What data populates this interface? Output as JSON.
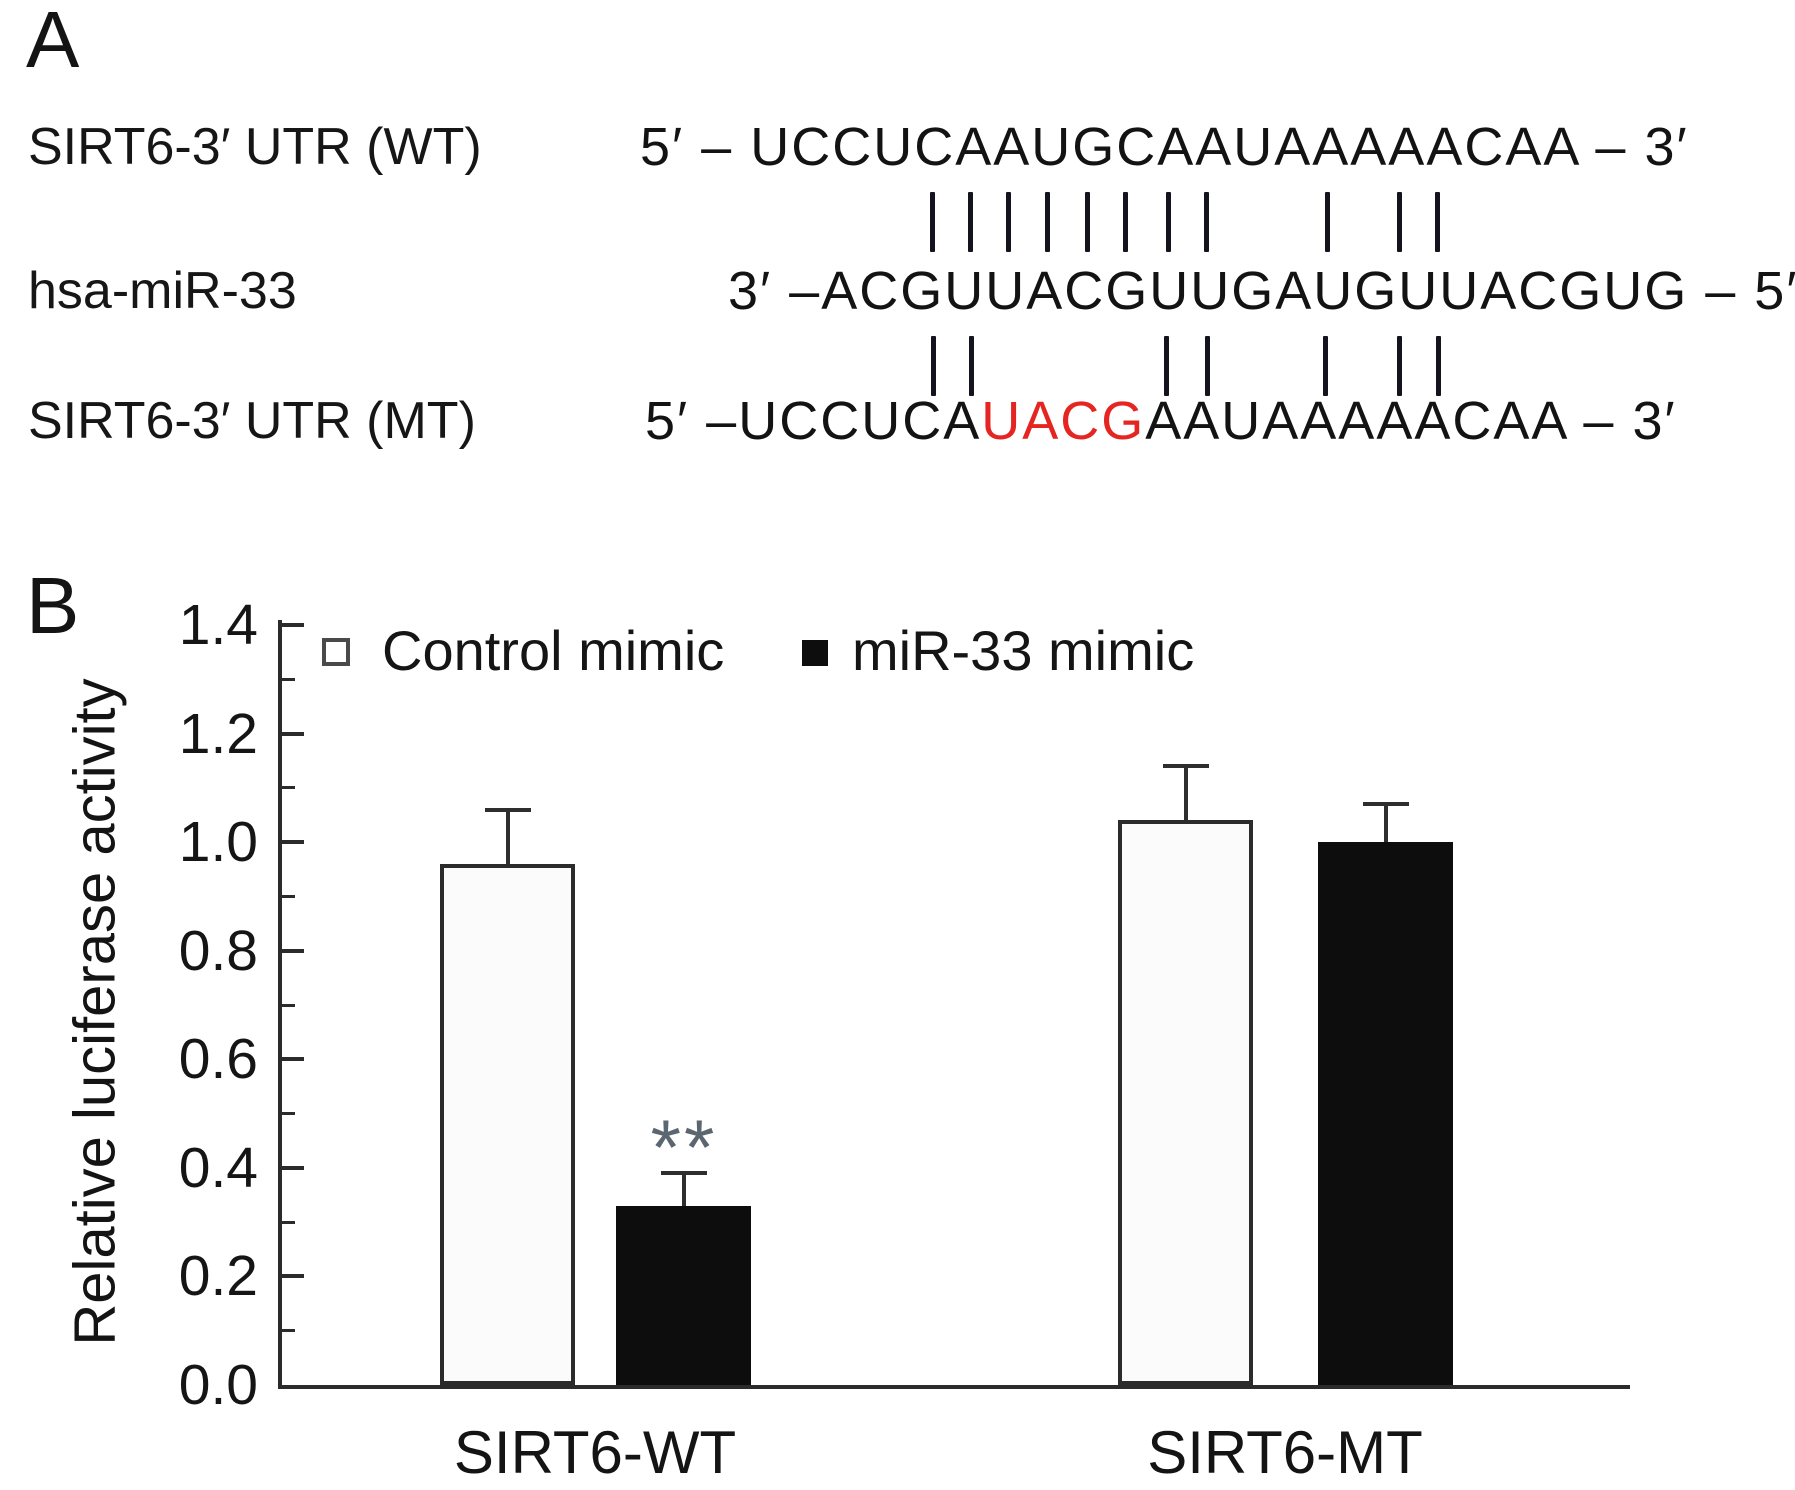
{
  "panel_a": {
    "label": "A",
    "wt": {
      "label": "SIRT6-3′ UTR (WT)",
      "prefix": "5′ – ",
      "seq": "UCCUCAAUGCAAUAAAAACAA",
      "suffix": " – 3′"
    },
    "mir": {
      "label": "hsa-miR-33",
      "prefix": "3′ –",
      "seq": "ACGUUACGUUGAUGUUACGUG",
      "suffix": " – 5′"
    },
    "mt": {
      "label": "SIRT6-3′ UTR (MT)",
      "prefix": "5′ –",
      "seq_start": "UCCUCA",
      "seq_mut": "UACG",
      "seq_end": "AAUAAAAACAA",
      "suffix": " – 3′"
    },
    "mut_color": "#e52521",
    "top_pairing_ticks_x": [
      930,
      968,
      1006,
      1045,
      1085,
      1123,
      1166,
      1204,
      1325,
      1397,
      1435
    ],
    "bottom_pairing_ticks_x": [
      931,
      969,
      1164,
      1205,
      1323,
      1397,
      1436
    ]
  },
  "panel_b": {
    "label": "B",
    "ytick_labels": [
      "1.4",
      "1.2",
      "1.0",
      "0.8",
      "0.6",
      "0.4",
      "0.2",
      "0.0"
    ],
    "sig_label": "**"
  },
  "chart_data": {
    "type": "bar",
    "title": "",
    "categories": [
      "SIRT6-WT",
      "SIRT6-MT"
    ],
    "series": [
      {
        "name": "Control mimic",
        "fill": "open",
        "values": [
          0.96,
          1.04
        ],
        "errors": [
          0.1,
          0.1
        ]
      },
      {
        "name": "miR-33 mimic",
        "fill": "solid",
        "values": [
          0.33,
          1.0
        ],
        "errors": [
          0.06,
          0.07
        ]
      }
    ],
    "xlabel": "",
    "ylabel": "Relative luciferase activity",
    "ylim": [
      0,
      1.4
    ],
    "ytick_step": 0.2,
    "grid": false,
    "legend_position": "top",
    "annotations": [
      {
        "text": "**",
        "category": "SIRT6-WT",
        "series": "miR-33 mimic",
        "meaning": "significant difference"
      }
    ]
  }
}
